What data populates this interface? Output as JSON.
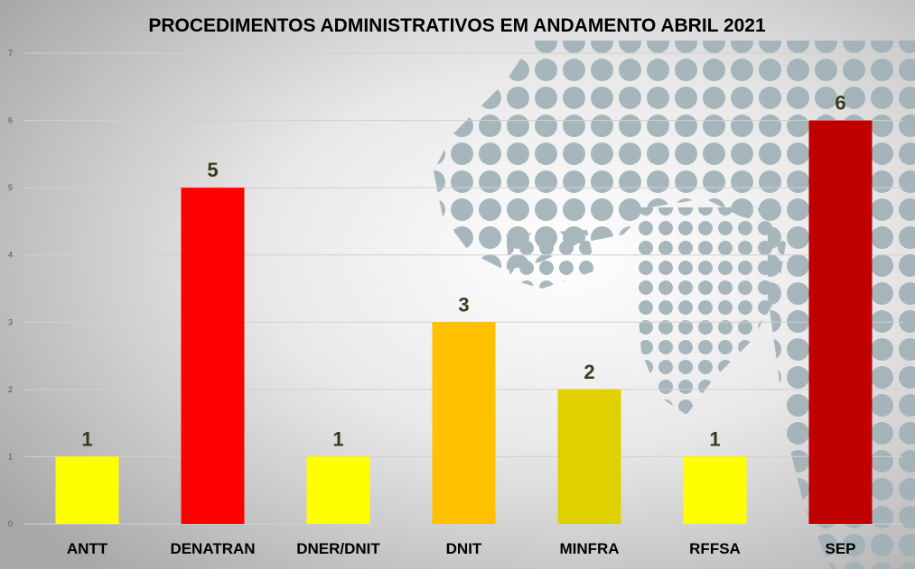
{
  "chart_data": {
    "type": "bar",
    "title": "PROCEDIMENTOS ADMINISTRATIVOS EM ANDAMENTO ABRIL 2021",
    "categories": [
      "ANTT",
      "DENATRAN",
      "DNER/DNIT",
      "DNIT",
      "MINFRA",
      "RFFSA",
      "SEP"
    ],
    "values": [
      1,
      5,
      1,
      3,
      2,
      1,
      6
    ],
    "bar_colors": [
      "#FFFF00",
      "#FF0000",
      "#FFFF00",
      "#FFC000",
      "#E0D000",
      "#FFFF00",
      "#C00000"
    ],
    "data_labels": [
      "1",
      "5",
      "1",
      "3",
      "2",
      "1",
      "6"
    ],
    "ylim": [
      0,
      7
    ],
    "yticks": [
      "0",
      "1",
      "2",
      "3",
      "4",
      "5",
      "6",
      "7"
    ],
    "grid": true,
    "legend": "none",
    "background": "gray gradient with dotted world map"
  }
}
